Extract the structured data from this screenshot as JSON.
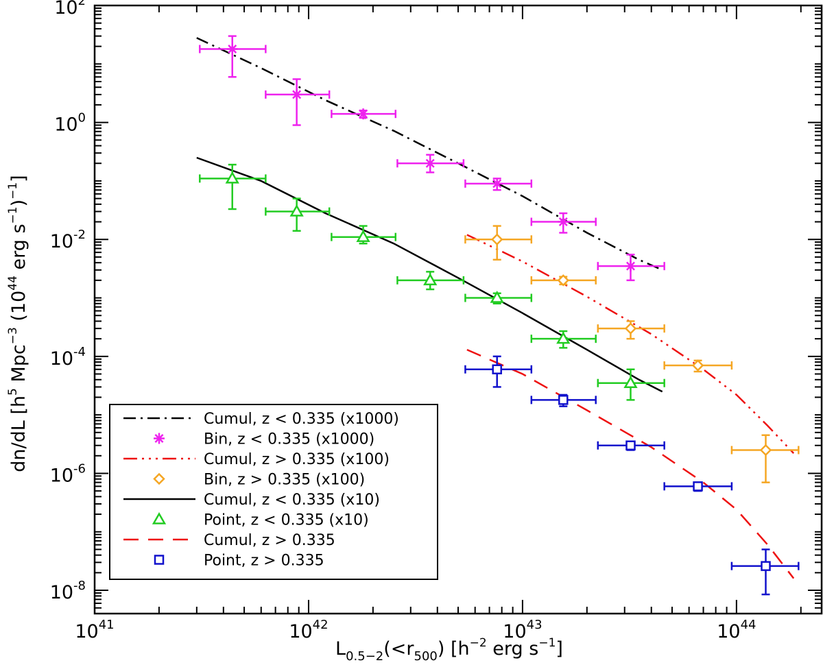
{
  "chart_data": {
    "type": "scatter",
    "title": "",
    "xscale": "log",
    "yscale": "log",
    "xlim": [
      1e+41,
      2.5e+44
    ],
    "ylim": [
      4e-09,
      100
    ],
    "xticks": [
      {
        "value": 1e+41,
        "base": "10",
        "exp": "41"
      },
      {
        "value": 1e+42,
        "base": "10",
        "exp": "42"
      },
      {
        "value": 1e+43,
        "base": "10",
        "exp": "43"
      },
      {
        "value": 1e+44,
        "base": "10",
        "exp": "44"
      }
    ],
    "yticks": [
      {
        "value": 1e-08,
        "base": "10",
        "exp": "-8"
      },
      {
        "value": 1e-06,
        "base": "10",
        "exp": "-6"
      },
      {
        "value": 0.0001,
        "base": "10",
        "exp": "-4"
      },
      {
        "value": 0.01,
        "base": "10",
        "exp": "-2"
      },
      {
        "value": 1,
        "base": "10",
        "exp": "0"
      },
      {
        "value": 100,
        "base": "10",
        "exp": "2"
      }
    ],
    "xlabel": {
      "L": "L",
      "band": "0.5−2",
      "mid": "(<r",
      "r_sub": "500",
      "unit": ") [h",
      "h_exp": "−2",
      "tail": " erg s",
      "s_exp": "−1",
      "end": "]"
    },
    "ylabel": {
      "a": "dn/dL [h",
      "a_exp": "5",
      "b": " Mpc",
      "b_exp": "−3",
      "c": " (10",
      "c_exp": "44",
      "d": " erg s",
      "d_exp": "−1",
      "e": ")",
      "e_exp": "−1",
      "f": "]"
    },
    "legend": [
      {
        "label": "Cumul, z < 0.335 (x1000)",
        "kind": "line",
        "dash": "dashdot",
        "color": "#000000"
      },
      {
        "label": "Bin, z < 0.335 (x1000)",
        "kind": "marker",
        "marker": "asterisk",
        "color": "#ee22ee"
      },
      {
        "label": "Cumul, z > 0.335 (x100)",
        "kind": "line",
        "dash": "dashdotdotdot",
        "color": "#ee1111"
      },
      {
        "label": "Bin, z > 0.335 (x100)",
        "kind": "marker",
        "marker": "diamond",
        "color": "#f5a623"
      },
      {
        "label": "Cumul, z < 0.335 (x10)",
        "kind": "line",
        "dash": "solid",
        "color": "#000000"
      },
      {
        "label": "Point, z < 0.335 (x10)",
        "kind": "marker",
        "marker": "triangle",
        "color": "#22cc22"
      },
      {
        "label": "Cumul, z > 0.335",
        "kind": "line",
        "dash": "dashed",
        "color": "#ee1111"
      },
      {
        "label": "Point, z > 0.335",
        "kind": "marker",
        "marker": "square",
        "color": "#1111cc"
      }
    ],
    "lines": [
      {
        "name": "Cumul, z < 0.335 (x1000)",
        "color": "#000000",
        "dash": "dashdot",
        "x": [
          3e+41,
          6e+41,
          1.2e+42,
          2.5e+42,
          5e+42,
          1e+43,
          2e+43,
          3.5e+43,
          4.5e+43
        ],
        "y": [
          28,
          8.5,
          2.4,
          0.72,
          0.2,
          0.055,
          0.013,
          0.0045,
          0.003
        ]
      },
      {
        "name": "Cumul, z > 0.335 (x100)",
        "color": "#ee1111",
        "dash": "dashdotdotdot",
        "x": [
          5.5e+42,
          1e+43,
          2e+43,
          4e+43,
          7e+43,
          1e+44,
          1.4e+44,
          1.85e+44
        ],
        "y": [
          0.012,
          0.0042,
          0.00105,
          0.00024,
          6e-05,
          2.2e-05,
          6.5e-06,
          2.2e-06
        ]
      },
      {
        "name": "Cumul, z < 0.335 (x10)",
        "color": "#000000",
        "dash": "solid",
        "x": [
          3e+41,
          6e+41,
          1.2e+42,
          2.5e+42,
          5e+42,
          1e+43,
          2e+43,
          3.5e+43,
          4.5e+43
        ],
        "y": [
          0.25,
          0.1,
          0.028,
          0.0085,
          0.0022,
          0.00055,
          0.00013,
          4e-05,
          2.5e-05
        ]
      },
      {
        "name": "Cumul, z > 0.335",
        "color": "#ee1111",
        "dash": "dashed",
        "x": [
          5.5e+42,
          1e+43,
          2e+43,
          4e+43,
          7e+43,
          1e+44,
          1.4e+44,
          1.85e+44
        ],
        "y": [
          0.00013,
          5e-05,
          1.2e-05,
          2.8e-06,
          7e-07,
          2.4e-07,
          6e-08,
          1.6e-08
        ]
      }
    ],
    "points": [
      {
        "name": "Bin, z < 0.335 (x1000)",
        "marker": "asterisk",
        "color": "#ee22ee",
        "x": [
          4.4e+41,
          8.8e+41,
          1.8e+42,
          3.7e+42,
          7.6e+42,
          1.55e+43,
          3.2e+43
        ],
        "xlo": [
          3.1e+41,
          6.3e+41,
          1.28e+42,
          2.6e+42,
          5.4e+42,
          1.1e+43,
          2.25e+43
        ],
        "xhi": [
          6.3e+41,
          1.25e+42,
          2.55e+42,
          5.3e+42,
          1.1e+43,
          2.2e+43,
          4.6e+43
        ],
        "y": [
          18,
          3,
          1.4,
          0.2,
          0.09,
          0.02,
          0.0035
        ],
        "ylo": [
          6,
          0.9,
          1.2,
          0.14,
          0.07,
          0.013,
          0.002
        ],
        "yhi": [
          30,
          5.5,
          1.6,
          0.28,
          0.11,
          0.028,
          0.0055
        ]
      },
      {
        "name": "Bin, z > 0.335 (x100)",
        "marker": "diamond",
        "color": "#f5a623",
        "x": [
          7.6e+42,
          1.55e+43,
          3.2e+43,
          6.6e+43,
          1.37e+44
        ],
        "xlo": [
          5.4e+42,
          1.1e+43,
          2.25e+43,
          4.6e+43,
          9.5e+43
        ],
        "xhi": [
          1.1e+43,
          2.2e+43,
          4.6e+43,
          9.5e+43,
          1.95e+44
        ],
        "y": [
          0.01,
          0.002,
          0.0003,
          7e-05,
          2.5e-06
        ],
        "ylo": [
          0.0045,
          0.0017,
          0.0002,
          5.5e-05,
          7e-07
        ],
        "yhi": [
          0.017,
          0.0023,
          0.0004,
          8.5e-05,
          4.5e-06
        ]
      },
      {
        "name": "Point, z < 0.335 (x10)",
        "marker": "triangle",
        "color": "#22cc22",
        "x": [
          4.4e+41,
          8.8e+41,
          1.8e+42,
          3.7e+42,
          7.6e+42,
          1.55e+43,
          3.2e+43
        ],
        "xlo": [
          3.1e+41,
          6.3e+41,
          1.28e+42,
          2.6e+42,
          5.4e+42,
          1.1e+43,
          2.25e+43
        ],
        "xhi": [
          6.3e+41,
          1.25e+42,
          2.55e+42,
          5.3e+42,
          1.1e+43,
          2.2e+43,
          4.6e+43
        ],
        "y": [
          0.11,
          0.03,
          0.011,
          0.002,
          0.001,
          0.0002,
          3.5e-05
        ],
        "ylo": [
          0.033,
          0.014,
          0.0085,
          0.0014,
          0.0008,
          0.00014,
          1.8e-05
        ],
        "yhi": [
          0.19,
          0.05,
          0.017,
          0.0028,
          0.0012,
          0.00027,
          6e-05
        ]
      },
      {
        "name": "Point, z > 0.335",
        "marker": "square",
        "color": "#1111cc",
        "x": [
          7.6e+42,
          1.55e+43,
          3.2e+43,
          6.6e+43,
          1.37e+44
        ],
        "xlo": [
          5.4e+42,
          1.1e+43,
          2.25e+43,
          4.6e+43,
          9.5e+43
        ],
        "xhi": [
          1.1e+43,
          2.2e+43,
          4.6e+43,
          9.5e+43,
          1.95e+44
        ],
        "y": [
          6e-05,
          1.8e-05,
          3e-06,
          6e-07,
          2.6e-08
        ],
        "ylo": [
          3e-05,
          1.4e-05,
          2.5e-06,
          5e-07,
          8.5e-09
        ],
        "yhi": [
          0.0001,
          2.2e-05,
          3.5e-06,
          7e-07,
          5e-08
        ]
      }
    ]
  }
}
